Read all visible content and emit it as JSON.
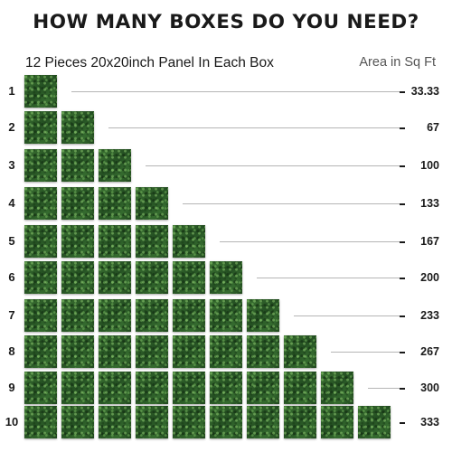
{
  "header": {
    "title": "HOW MANY BOXES DO YOU NEED?",
    "subtitle": "12 Pieces 20x20inch Panel In Each Box",
    "area_label": "Area in Sq Ft"
  },
  "rows": [
    {
      "boxes": "1",
      "area": "33.33",
      "count": 1
    },
    {
      "boxes": "2",
      "area": "67",
      "count": 2
    },
    {
      "boxes": "3",
      "area": "100",
      "count": 3
    },
    {
      "boxes": "4",
      "area": "133",
      "count": 4
    },
    {
      "boxes": "5",
      "area": "167",
      "count": 5
    },
    {
      "boxes": "6",
      "area": "200",
      "count": 6
    },
    {
      "boxes": "7",
      "area": "233",
      "count": 7
    },
    {
      "boxes": "8",
      "area": "267",
      "count": 8
    },
    {
      "boxes": "9",
      "area": "300",
      "count": 9
    },
    {
      "boxes": "10",
      "area": "333",
      "count": 10
    }
  ],
  "colors": {
    "panel_green": "#2f5f2a",
    "guide_line": "#b5b5b5",
    "text": "#1a1a1a"
  },
  "icons": {
    "panel": "grass-panel-icon"
  }
}
